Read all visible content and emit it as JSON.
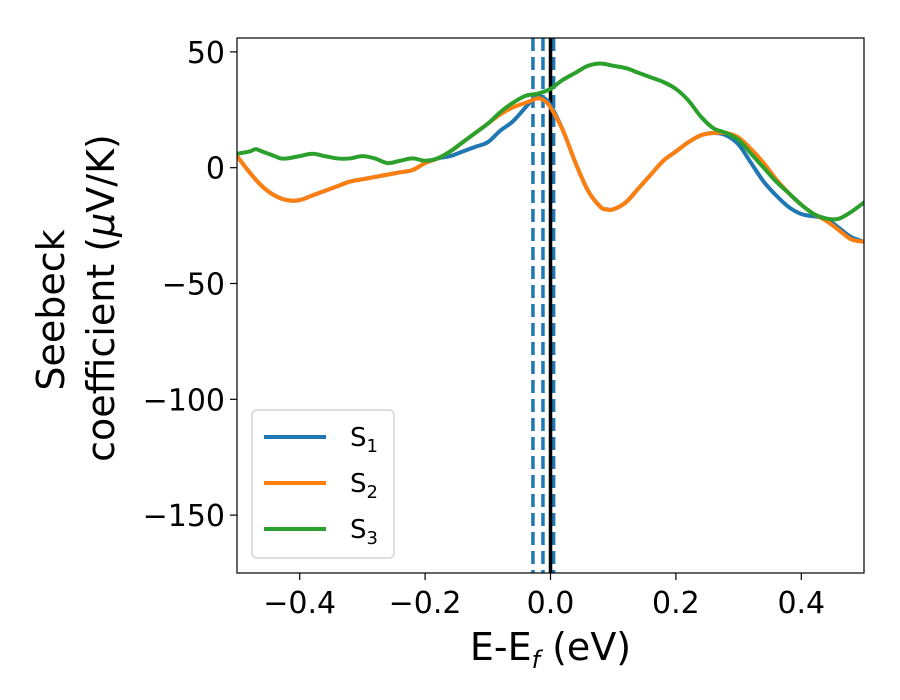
{
  "chart_data": {
    "type": "line",
    "xlabel": "E-E",
    "xlabel_sub": "f",
    "xlabel_unit": " (eV)",
    "ylabel_line1": "Seebeck",
    "ylabel_line2_pre": "coefficient  (",
    "ylabel_mu": "μ",
    "ylabel_line2_post": "V/K)",
    "xlim": [
      -0.5,
      0.5
    ],
    "ylim": [
      -175,
      56
    ],
    "x_ticks": [
      -0.4,
      -0.2,
      0.0,
      0.2,
      0.4
    ],
    "x_tick_labels": [
      "−0.4",
      "−0.2",
      "0.0",
      "0.2",
      "0.4"
    ],
    "y_ticks": [
      50,
      0,
      -50,
      -100,
      -150
    ],
    "y_tick_labels": [
      "50",
      "0",
      "−50",
      "−100",
      "−150"
    ],
    "grid": false,
    "legend_position": "lower-left",
    "vlines": [
      {
        "x": -0.028,
        "style": "dashed",
        "color": "#1f77b4"
      },
      {
        "x": -0.012,
        "style": "dashed",
        "color": "#1f77b4"
      },
      {
        "x": 0.005,
        "style": "dashed",
        "color": "#1f77b4"
      },
      {
        "x": 0.0,
        "style": "solid",
        "color": "#000000"
      }
    ],
    "series": [
      {
        "name": "S",
        "sub": "1",
        "color": "#1f77b4",
        "points": [
          [
            -0.5,
            5
          ],
          [
            -0.48,
            -2
          ],
          [
            -0.46,
            -8
          ],
          [
            -0.44,
            -12
          ],
          [
            -0.42,
            -14
          ],
          [
            -0.4,
            -14
          ],
          [
            -0.38,
            -12
          ],
          [
            -0.36,
            -10
          ],
          [
            -0.34,
            -8
          ],
          [
            -0.32,
            -6
          ],
          [
            -0.3,
            -5
          ],
          [
            -0.28,
            -4
          ],
          [
            -0.26,
            -3
          ],
          [
            -0.24,
            -2
          ],
          [
            -0.22,
            -1
          ],
          [
            -0.2,
            2
          ],
          [
            -0.18,
            4
          ],
          [
            -0.16,
            5
          ],
          [
            -0.14,
            7
          ],
          [
            -0.12,
            9
          ],
          [
            -0.1,
            11
          ],
          [
            -0.08,
            16
          ],
          [
            -0.06,
            20
          ],
          [
            -0.04,
            26
          ],
          [
            -0.03,
            29
          ],
          [
            -0.02,
            31
          ],
          [
            -0.01,
            30
          ],
          [
            0.0,
            27
          ],
          [
            0.02,
            16
          ],
          [
            0.04,
            2
          ],
          [
            0.06,
            -10
          ],
          [
            0.08,
            -17
          ],
          [
            0.09,
            -18
          ],
          [
            0.1,
            -18
          ],
          [
            0.12,
            -15
          ],
          [
            0.14,
            -9
          ],
          [
            0.16,
            -3
          ],
          [
            0.18,
            3
          ],
          [
            0.2,
            7
          ],
          [
            0.22,
            11
          ],
          [
            0.24,
            14
          ],
          [
            0.26,
            15
          ],
          [
            0.28,
            14
          ],
          [
            0.3,
            10
          ],
          [
            0.32,
            2
          ],
          [
            0.34,
            -6
          ],
          [
            0.36,
            -12
          ],
          [
            0.38,
            -17
          ],
          [
            0.4,
            -20
          ],
          [
            0.42,
            -21
          ],
          [
            0.44,
            -22
          ],
          [
            0.46,
            -26
          ],
          [
            0.48,
            -30
          ],
          [
            0.5,
            -32
          ]
        ]
      },
      {
        "name": "S",
        "sub": "2",
        "color": "#ff7f0e",
        "points": [
          [
            -0.5,
            5
          ],
          [
            -0.48,
            -2
          ],
          [
            -0.46,
            -8
          ],
          [
            -0.44,
            -12
          ],
          [
            -0.42,
            -14
          ],
          [
            -0.4,
            -14
          ],
          [
            -0.38,
            -12
          ],
          [
            -0.36,
            -10
          ],
          [
            -0.34,
            -8
          ],
          [
            -0.32,
            -6
          ],
          [
            -0.3,
            -5
          ],
          [
            -0.28,
            -4
          ],
          [
            -0.26,
            -3
          ],
          [
            -0.24,
            -2
          ],
          [
            -0.22,
            -1
          ],
          [
            -0.2,
            2
          ],
          [
            -0.18,
            4
          ],
          [
            -0.16,
            7
          ],
          [
            -0.14,
            11
          ],
          [
            -0.12,
            15
          ],
          [
            -0.1,
            19
          ],
          [
            -0.08,
            23
          ],
          [
            -0.06,
            26
          ],
          [
            -0.04,
            28
          ],
          [
            -0.03,
            29
          ],
          [
            -0.02,
            30
          ],
          [
            -0.01,
            29
          ],
          [
            0.0,
            26
          ],
          [
            0.02,
            16
          ],
          [
            0.04,
            2
          ],
          [
            0.06,
            -10
          ],
          [
            0.08,
            -17
          ],
          [
            0.09,
            -18
          ],
          [
            0.1,
            -18
          ],
          [
            0.12,
            -15
          ],
          [
            0.14,
            -9
          ],
          [
            0.16,
            -3
          ],
          [
            0.18,
            3
          ],
          [
            0.2,
            7
          ],
          [
            0.22,
            11
          ],
          [
            0.24,
            14
          ],
          [
            0.26,
            15
          ],
          [
            0.28,
            15
          ],
          [
            0.3,
            13
          ],
          [
            0.32,
            8
          ],
          [
            0.34,
            2
          ],
          [
            0.36,
            -5
          ],
          [
            0.38,
            -11
          ],
          [
            0.4,
            -16
          ],
          [
            0.42,
            -20
          ],
          [
            0.44,
            -23
          ],
          [
            0.46,
            -27
          ],
          [
            0.48,
            -31
          ],
          [
            0.5,
            -32
          ]
        ]
      },
      {
        "name": "S",
        "sub": "3",
        "color": "#2ca02c",
        "points": [
          [
            -0.5,
            6
          ],
          [
            -0.48,
            7
          ],
          [
            -0.47,
            8
          ],
          [
            -0.46,
            7
          ],
          [
            -0.44,
            5
          ],
          [
            -0.43,
            4
          ],
          [
            -0.42,
            4
          ],
          [
            -0.4,
            5
          ],
          [
            -0.38,
            6
          ],
          [
            -0.36,
            5
          ],
          [
            -0.34,
            4
          ],
          [
            -0.32,
            4
          ],
          [
            -0.3,
            5
          ],
          [
            -0.28,
            4
          ],
          [
            -0.26,
            2
          ],
          [
            -0.24,
            3
          ],
          [
            -0.22,
            4
          ],
          [
            -0.2,
            3
          ],
          [
            -0.18,
            4
          ],
          [
            -0.16,
            7
          ],
          [
            -0.14,
            11
          ],
          [
            -0.12,
            15
          ],
          [
            -0.1,
            19
          ],
          [
            -0.08,
            24
          ],
          [
            -0.06,
            28
          ],
          [
            -0.04,
            31
          ],
          [
            -0.02,
            32
          ],
          [
            0.0,
            34
          ],
          [
            0.01,
            36
          ],
          [
            0.02,
            38
          ],
          [
            0.04,
            41
          ],
          [
            0.06,
            44
          ],
          [
            0.08,
            45
          ],
          [
            0.1,
            44
          ],
          [
            0.12,
            43
          ],
          [
            0.14,
            41
          ],
          [
            0.16,
            39
          ],
          [
            0.18,
            37
          ],
          [
            0.2,
            34
          ],
          [
            0.22,
            29
          ],
          [
            0.24,
            22
          ],
          [
            0.26,
            17
          ],
          [
            0.28,
            15
          ],
          [
            0.3,
            12
          ],
          [
            0.32,
            6
          ],
          [
            0.34,
            0
          ],
          [
            0.36,
            -6
          ],
          [
            0.38,
            -11
          ],
          [
            0.4,
            -16
          ],
          [
            0.42,
            -20
          ],
          [
            0.44,
            -22
          ],
          [
            0.46,
            -22
          ],
          [
            0.48,
            -19
          ],
          [
            0.5,
            -15
          ]
        ]
      }
    ]
  }
}
